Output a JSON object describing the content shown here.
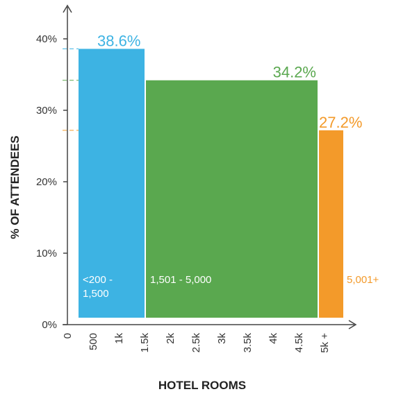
{
  "chart_data": {
    "type": "bar",
    "title": "",
    "xlabel": "HOTEL ROOMS",
    "ylabel": "% OF ATTENDEES",
    "ylim": [
      0,
      40
    ],
    "yticks": [
      "0%",
      "10%",
      "20%",
      "30%",
      "40%"
    ],
    "xticks": [
      "0",
      "500",
      "1k",
      "1.5k",
      "2k",
      "2.5k",
      "3k",
      "3.5k",
      "4k",
      "4.5k",
      "5k +"
    ],
    "bars": [
      {
        "category": "<200 - 1,500",
        "category_lines": [
          "<200 -",
          "1,500"
        ],
        "value": 38.6,
        "value_label": "38.6%",
        "color": "#3db3e3",
        "x_start": 0,
        "x_end": 1500
      },
      {
        "category": "1,501 - 5,000",
        "category_lines": [
          "1,501 - 5,000"
        ],
        "value": 34.2,
        "value_label": "34.2%",
        "color": "#5aa84f",
        "x_start": 1500,
        "x_end": 5000
      },
      {
        "category": "5,001+",
        "category_lines": [
          "5,001+"
        ],
        "value": 27.2,
        "value_label": "27.2%",
        "color": "#f39a2a",
        "x_start": 5000,
        "x_end": 5500
      }
    ],
    "grid": false,
    "reference_lines": true
  }
}
